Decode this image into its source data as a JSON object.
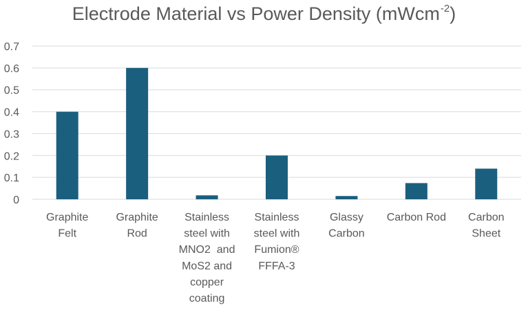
{
  "chart_data": {
    "type": "bar",
    "title": "Electrode Material vs Power Density (mWcm",
    "title_superscript": "-2",
    "title_suffix": ")",
    "xlabel": "",
    "ylabel": "",
    "categories": [
      [
        "Graphite",
        "Felt"
      ],
      [
        "Graphite",
        "Rod"
      ],
      [
        "Stainless",
        "steel with",
        "MNO2  and",
        "MoS2 and",
        "copper",
        "coating"
      ],
      [
        "Stainless",
        "steel with",
        "Fumion®",
        "FFFA-3"
      ],
      [
        "Glassy",
        "Carbon"
      ],
      [
        "Carbon Rod"
      ],
      [
        "Carbon",
        "Sheet"
      ]
    ],
    "values": [
      0.4,
      0.6,
      0.018,
      0.2,
      0.015,
      0.074,
      0.14
    ],
    "ylim": [
      0,
      0.7
    ],
    "yticks": [
      "0",
      "0.1",
      "0.2",
      "0.3",
      "0.4",
      "0.5",
      "0.6",
      "0.7"
    ],
    "grid": true,
    "legend": "none",
    "bar_color": "#1b5f7e",
    "grid_color": "#d9d9d9",
    "text_color": "#595959"
  }
}
